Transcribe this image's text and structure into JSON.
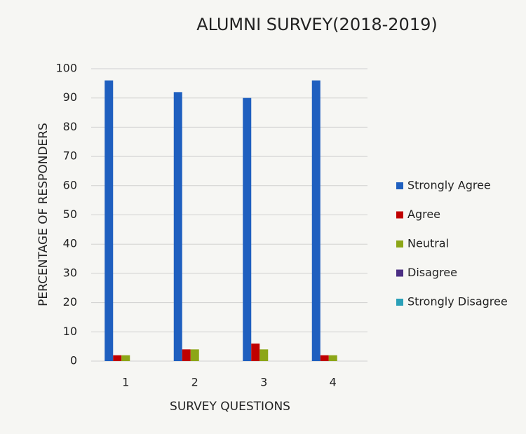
{
  "chart_data": {
    "type": "bar",
    "title": "ALUMNI SURVEY(2018-2019)",
    "x_label": "SURVEY QUESTIONS",
    "y_label": "PERCENTAGE OF RESPONDERS",
    "categories": [
      "1",
      "2",
      "3",
      "4"
    ],
    "series": [
      {
        "name": "Strongly Agree",
        "color": "#1f5fbf",
        "values": [
          96,
          92,
          90,
          96
        ]
      },
      {
        "name": "Agree",
        "color": "#c00000",
        "values": [
          2,
          4,
          6,
          2
        ]
      },
      {
        "name": "Neutral",
        "color": "#8ca617",
        "values": [
          2,
          4,
          4,
          2
        ]
      },
      {
        "name": "Disagree",
        "color": "#4b2e83",
        "values": [
          0,
          0,
          0,
          0
        ]
      },
      {
        "name": "Strongly Disagree",
        "color": "#2aa0b8",
        "values": [
          0,
          0,
          0,
          0
        ]
      }
    ],
    "ylim": [
      0,
      100
    ],
    "yticks": [
      0,
      10,
      20,
      30,
      40,
      50,
      60,
      70,
      80,
      90,
      100
    ],
    "grid": true,
    "legend": "right"
  }
}
